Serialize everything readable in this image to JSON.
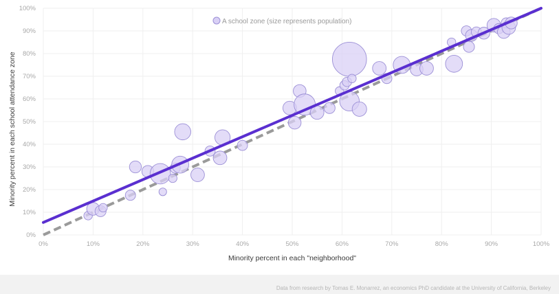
{
  "chart_data": {
    "type": "scatter",
    "legend": "A school zone (size represents population)",
    "legend_position": "top-center",
    "xlabel": "Minority percent in each \"neighborhood\"",
    "ylabel": "Minority percent in each school attendance zone",
    "xlim": [
      0,
      100
    ],
    "ylim": [
      0,
      100
    ],
    "x_ticks": [
      "0%",
      "10%",
      "20%",
      "30%",
      "40%",
      "50%",
      "60%",
      "70%",
      "80%",
      "90%",
      "100%"
    ],
    "y_ticks": [
      "0%",
      "10%",
      "20%",
      "30%",
      "40%",
      "50%",
      "60%",
      "70%",
      "80%",
      "90%",
      "100%"
    ],
    "grid": true,
    "colors": {
      "bubble_fill": "#d9d0f5",
      "bubble_stroke": "#9b8fd6",
      "fit_line": "#5a2fd0",
      "reference_line": "#9a9a9a"
    },
    "fit_line": {
      "x": [
        0,
        100
      ],
      "y": [
        5.5,
        100
      ]
    },
    "reference_line": {
      "x": [
        0,
        100
      ],
      "y": [
        0,
        100
      ]
    },
    "points": [
      {
        "x": 9,
        "y": 8.5,
        "size": 1
      },
      {
        "x": 10,
        "y": 11.5,
        "size": 1.5
      },
      {
        "x": 11.5,
        "y": 10.5,
        "size": 1.3
      },
      {
        "x": 12,
        "y": 12,
        "size": 1
      },
      {
        "x": 17.5,
        "y": 17.5,
        "size": 1.2
      },
      {
        "x": 18.5,
        "y": 30,
        "size": 1.4
      },
      {
        "x": 21,
        "y": 28,
        "size": 1.4
      },
      {
        "x": 23.5,
        "y": 27,
        "size": 2.4
      },
      {
        "x": 24,
        "y": 19,
        "size": 0.9
      },
      {
        "x": 26,
        "y": 25,
        "size": 1
      },
      {
        "x": 26.5,
        "y": 29.5,
        "size": 1.2
      },
      {
        "x": 27.5,
        "y": 31,
        "size": 2
      },
      {
        "x": 28,
        "y": 45.5,
        "size": 1.9
      },
      {
        "x": 31,
        "y": 26.5,
        "size": 1.6
      },
      {
        "x": 33.5,
        "y": 37,
        "size": 1.2
      },
      {
        "x": 35.5,
        "y": 34,
        "size": 1.6
      },
      {
        "x": 36,
        "y": 43,
        "size": 1.8
      },
      {
        "x": 40,
        "y": 39.5,
        "size": 1.2
      },
      {
        "x": 49.5,
        "y": 56,
        "size": 1.6
      },
      {
        "x": 50.5,
        "y": 49.5,
        "size": 1.5
      },
      {
        "x": 51.5,
        "y": 63.5,
        "size": 1.5
      },
      {
        "x": 52.5,
        "y": 57.5,
        "size": 2.5
      },
      {
        "x": 55,
        "y": 54,
        "size": 1.6
      },
      {
        "x": 57.5,
        "y": 56,
        "size": 1.3
      },
      {
        "x": 59.5,
        "y": 63.5,
        "size": 1
      },
      {
        "x": 60.5,
        "y": 66,
        "size": 1.1
      },
      {
        "x": 61,
        "y": 67.5,
        "size": 1.1
      },
      {
        "x": 61.5,
        "y": 59,
        "size": 2.3
      },
      {
        "x": 61.5,
        "y": 77.5,
        "size": 4
      },
      {
        "x": 62,
        "y": 69,
        "size": 1
      },
      {
        "x": 63.5,
        "y": 55.5,
        "size": 1.7
      },
      {
        "x": 67.5,
        "y": 73.5,
        "size": 1.6
      },
      {
        "x": 69,
        "y": 69,
        "size": 1.2
      },
      {
        "x": 72,
        "y": 75,
        "size": 2
      },
      {
        "x": 75,
        "y": 73,
        "size": 1.5
      },
      {
        "x": 77,
        "y": 73.5,
        "size": 1.6
      },
      {
        "x": 82,
        "y": 85,
        "size": 1
      },
      {
        "x": 82.5,
        "y": 75.5,
        "size": 2
      },
      {
        "x": 85,
        "y": 90,
        "size": 1.2
      },
      {
        "x": 85.5,
        "y": 83,
        "size": 1.3
      },
      {
        "x": 86,
        "y": 88,
        "size": 1.4
      },
      {
        "x": 87,
        "y": 89.5,
        "size": 1.2
      },
      {
        "x": 88.5,
        "y": 89,
        "size": 1.4
      },
      {
        "x": 90.5,
        "y": 92.5,
        "size": 1.6
      },
      {
        "x": 91.5,
        "y": 91,
        "size": 1.2
      },
      {
        "x": 92.5,
        "y": 89.5,
        "size": 1.5
      },
      {
        "x": 93,
        "y": 93.5,
        "size": 1.2
      },
      {
        "x": 93.5,
        "y": 91.5,
        "size": 1.6
      },
      {
        "x": 94,
        "y": 93.5,
        "size": 1.4
      }
    ]
  },
  "source_note": "Data from research by Tomas E. Monarrez, an economics PhD candidate at the University of California, Berkeley"
}
